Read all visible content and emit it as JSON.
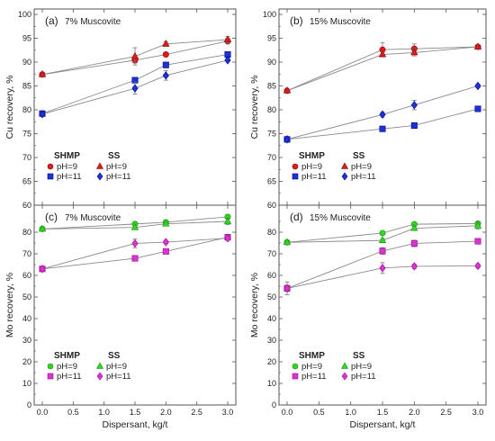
{
  "chart_data": [
    {
      "type": "scatter",
      "id": "a",
      "panel_label": "(a)",
      "panel_note": "7% Muscovite",
      "xlabel": "",
      "ylabel": "Cu recovery, %",
      "xlim": [
        0,
        3
      ],
      "ylim": [
        60,
        100
      ],
      "xticks": [
        "0.0",
        "0.5",
        "1.0",
        "1.5",
        "2.0",
        "2.5",
        "3.0"
      ],
      "yticks": [
        "60",
        "65",
        "70",
        "75",
        "80",
        "85",
        "90",
        "95",
        "100"
      ],
      "show_xticklabels": false,
      "legend_position": "lower-left",
      "legend_headers": [
        "SHMP",
        "SS"
      ],
      "series": [
        {
          "name": "pH=9",
          "group": "SHMP",
          "marker": "circle",
          "color": "#d42020",
          "x": [
            0,
            1.5,
            2,
            3
          ],
          "y": [
            87.4,
            90.4,
            91.6,
            94.4
          ],
          "err": [
            0.3,
            0.6,
            0.4,
            0.6
          ]
        },
        {
          "name": "pH=11",
          "group": "SHMP",
          "marker": "square",
          "color": "#1c34d0",
          "x": [
            0,
            1.5,
            2,
            3
          ],
          "y": [
            79.2,
            86.2,
            89.4,
            91.6
          ],
          "err": [
            0.3,
            0.6,
            0.6,
            0.5
          ]
        },
        {
          "name": "pH=9",
          "group": "SS",
          "marker": "triangle",
          "color": "#d42020",
          "x": [
            0,
            1.5,
            2,
            3
          ],
          "y": [
            87.4,
            91.2,
            93.8,
            94.7
          ],
          "err": [
            0.3,
            1.8,
            0.5,
            0.7
          ]
        },
        {
          "name": "pH=11",
          "group": "SS",
          "marker": "diamond",
          "color": "#1c34d0",
          "x": [
            0,
            1.5,
            2,
            3
          ],
          "y": [
            79.1,
            84.5,
            87.2,
            90.4
          ],
          "err": [
            0.3,
            1.2,
            1.0,
            0.4
          ]
        }
      ]
    },
    {
      "type": "scatter",
      "id": "b",
      "panel_label": "(b)",
      "panel_note": "15% Muscovite",
      "xlabel": "",
      "ylabel": "Cu recovery, %",
      "xlim": [
        0,
        3
      ],
      "ylim": [
        60,
        100
      ],
      "xticks": [
        "0.0",
        "0.5",
        "1.0",
        "1.5",
        "2.0",
        "2.5",
        "3.0"
      ],
      "yticks": [
        "60",
        "65",
        "70",
        "75",
        "80",
        "85",
        "90",
        "95",
        "100"
      ],
      "show_xticklabels": false,
      "legend_position": "lower-left",
      "legend_headers": [
        "SHMP",
        "SS"
      ],
      "series": [
        {
          "name": "pH=9",
          "group": "SHMP",
          "marker": "circle",
          "color": "#d42020",
          "x": [
            0,
            1.5,
            2,
            3
          ],
          "y": [
            84.0,
            92.6,
            92.8,
            93.2
          ],
          "err": [
            0.3,
            1.5,
            1.0,
            0.4
          ]
        },
        {
          "name": "pH=11",
          "group": "SHMP",
          "marker": "square",
          "color": "#1c34d0",
          "x": [
            0,
            1.5,
            2,
            3
          ],
          "y": [
            73.8,
            76.0,
            76.7,
            80.2
          ],
          "err": [
            0.3,
            0.5,
            0.6,
            0.4
          ]
        },
        {
          "name": "pH=9",
          "group": "SS",
          "marker": "triangle",
          "color": "#d42020",
          "x": [
            0,
            1.5,
            2,
            3
          ],
          "y": [
            84.0,
            91.6,
            92.0,
            93.2
          ],
          "err": [
            0.3,
            0.5,
            0.7,
            0.5
          ]
        },
        {
          "name": "pH=11",
          "group": "SS",
          "marker": "diamond",
          "color": "#1c34d0",
          "x": [
            0,
            1.5,
            2,
            3
          ],
          "y": [
            73.8,
            79.0,
            81.0,
            85.0
          ],
          "err": [
            0.3,
            0.5,
            1.0,
            0.4
          ]
        }
      ]
    },
    {
      "type": "scatter",
      "id": "c",
      "panel_label": "(c)",
      "panel_note": "7% Muscovite",
      "xlabel": "Dispersant, kg/t",
      "ylabel": "Mo recovery, %",
      "xlim": [
        0,
        3
      ],
      "ylim": [
        0,
        90
      ],
      "xticks": [
        "0.0",
        "0.5",
        "1.0",
        "1.5",
        "2.0",
        "2.5",
        "3.0"
      ],
      "yticks": [
        "0",
        "10",
        "20",
        "30",
        "40",
        "50",
        "60",
        "70",
        "80"
      ],
      "show_xticklabels": true,
      "legend_position": "lower-left",
      "legend_headers": [
        "SHMP",
        "SS"
      ],
      "series": [
        {
          "name": "pH=9",
          "group": "SHMP",
          "marker": "circle",
          "color": "#3ccf2a",
          "x": [
            0,
            1.5,
            2,
            3
          ],
          "y": [
            81.5,
            83.8,
            84.6,
            87.1
          ],
          "err": [
            0.5,
            0.8,
            0.8,
            1.0
          ]
        },
        {
          "name": "pH=11",
          "group": "SHMP",
          "marker": "square",
          "color": "#d636cc",
          "x": [
            0,
            1.5,
            2,
            3
          ],
          "y": [
            63.0,
            67.9,
            71.1,
            77.7
          ],
          "err": [
            0.5,
            0.8,
            0.8,
            1.0
          ]
        },
        {
          "name": "pH=9",
          "group": "SS",
          "marker": "triangle",
          "color": "#3ccf2a",
          "x": [
            0,
            1.5,
            2,
            3
          ],
          "y": [
            81.5,
            82.2,
            83.9,
            85.0
          ],
          "err": [
            0.5,
            0.8,
            0.8,
            1.5
          ]
        },
        {
          "name": "pH=11",
          "group": "SS",
          "marker": "diamond",
          "color": "#d636cc",
          "x": [
            0,
            1.5,
            2,
            3
          ],
          "y": [
            63.0,
            74.8,
            75.4,
            77.2
          ],
          "err": [
            0.5,
            2.0,
            0.8,
            1.0
          ]
        }
      ]
    },
    {
      "type": "scatter",
      "id": "d",
      "panel_label": "(d)",
      "panel_note": "15% Muscovite",
      "xlabel": "Dispersant, kg/t",
      "ylabel": "Mo recovery, %",
      "xlim": [
        0,
        3
      ],
      "ylim": [
        0,
        90
      ],
      "xticks": [
        "0.0",
        "0.5",
        "1.0",
        "1.5",
        "2.0",
        "2.5",
        "3.0"
      ],
      "yticks": [
        "0",
        "10",
        "20",
        "30",
        "40",
        "50",
        "60",
        "70",
        "80"
      ],
      "show_xticklabels": true,
      "legend_position": "lower-left",
      "legend_headers": [
        "SHMP",
        "SS"
      ],
      "series": [
        {
          "name": "pH=9",
          "group": "SHMP",
          "marker": "circle",
          "color": "#3ccf2a",
          "x": [
            0,
            1.5,
            2,
            3
          ],
          "y": [
            75.3,
            79.6,
            83.7,
            84.0
          ],
          "err": [
            0.5,
            0.8,
            0.8,
            0.8
          ]
        },
        {
          "name": "pH=11",
          "group": "SHMP",
          "marker": "square",
          "color": "#d636cc",
          "x": [
            0,
            1.5,
            2,
            3
          ],
          "y": [
            54.0,
            71.3,
            74.8,
            75.8
          ],
          "err": [
            3.0,
            1.5,
            1.5,
            1.0
          ]
        },
        {
          "name": "pH=9",
          "group": "SS",
          "marker": "triangle",
          "color": "#3ccf2a",
          "x": [
            0,
            1.5,
            2,
            3
          ],
          "y": [
            75.3,
            76.2,
            81.8,
            83.0
          ],
          "err": [
            0.5,
            0.8,
            1.0,
            1.5
          ]
        },
        {
          "name": "pH=11",
          "group": "SS",
          "marker": "diamond",
          "color": "#d636cc",
          "x": [
            0,
            1.5,
            2,
            3
          ],
          "y": [
            54.0,
            63.4,
            64.2,
            64.4
          ],
          "err": [
            1.5,
            2.5,
            1.0,
            1.0
          ]
        }
      ]
    }
  ]
}
